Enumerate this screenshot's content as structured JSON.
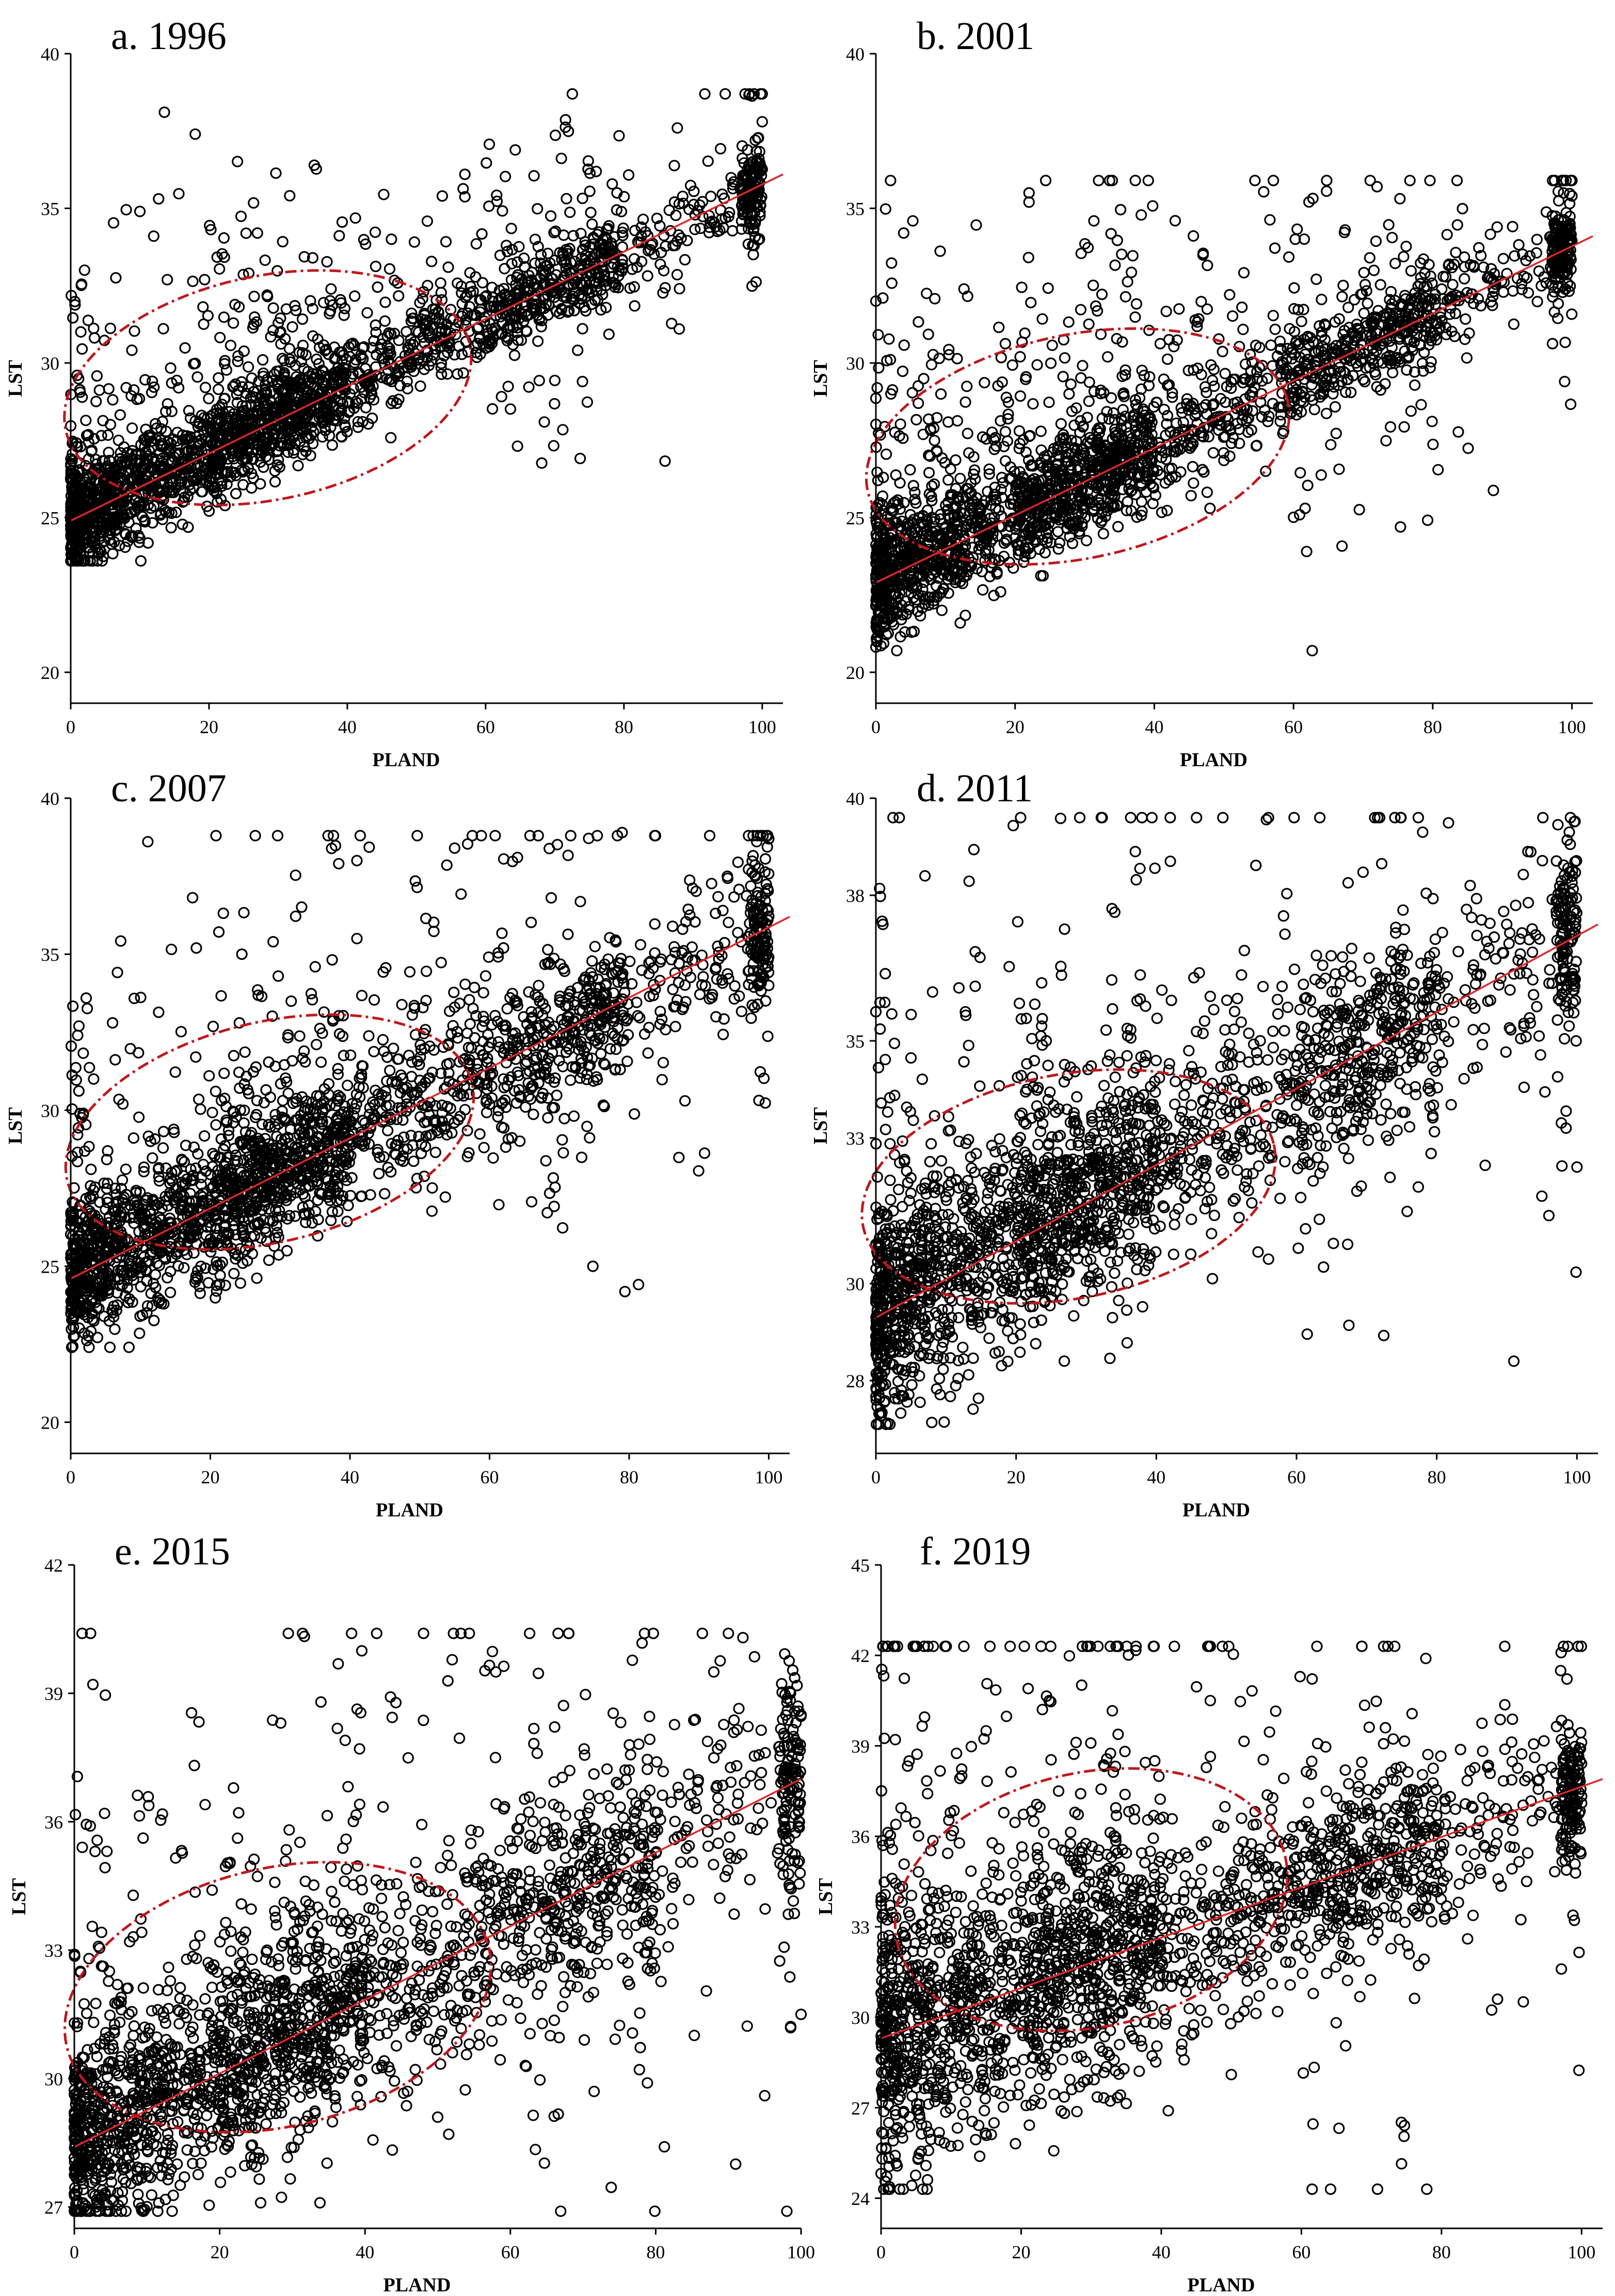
{
  "chart_data": [
    {
      "type": "scatter",
      "title": "a. 1996",
      "xlabel": "PLAND",
      "ylabel": "LST",
      "xlim": [
        0,
        103
      ],
      "ylim": [
        19,
        40
      ],
      "xticks": [
        0,
        20,
        40,
        60,
        80,
        100
      ],
      "yticks": [
        20,
        25,
        30,
        35,
        40
      ],
      "grid": false,
      "legend": "none",
      "point_color": "#000000",
      "trend_color": "#e0262a",
      "ellipse_color": "#c0171c",
      "trend_line": {
        "x": [
          0,
          103
        ],
        "y": [
          24.9,
          36.1
        ]
      },
      "ellipse": {
        "cx": 28.5,
        "cy": 29.2,
        "rx": 30,
        "ry": 3.6,
        "angle_deg": 14
      },
      "point_cloud": {
        "count": 2400,
        "seed": 11,
        "x_range": [
          0,
          100
        ],
        "y_min": 23.6,
        "y_max": 38.7,
        "base": 24.9,
        "slope": 0.109,
        "spread_low": 0.9,
        "spread_high": 0.6,
        "outlier_rate": 0.16,
        "outlier_scale": 4.5
      },
      "points": [
        {
          "x": 18,
          "y": 37.4
        },
        {
          "x": 57,
          "y": 36.1
        },
        {
          "x": 10,
          "y": 34.9
        },
        {
          "x": 12,
          "y": 34.1
        },
        {
          "x": 27,
          "y": 34.2
        },
        {
          "x": 79,
          "y": 35.5
        },
        {
          "x": 88,
          "y": 31.1
        },
        {
          "x": 63,
          "y": 33.8
        },
        {
          "x": 100,
          "y": 38.7
        },
        {
          "x": 100,
          "y": 37.8
        },
        {
          "x": 99,
          "y": 37.2
        },
        {
          "x": 2,
          "y": 33.0
        },
        {
          "x": 35,
          "y": 33.4
        },
        {
          "x": 74,
          "y": 29.4
        },
        {
          "x": 68,
          "y": 33.5
        }
      ]
    },
    {
      "type": "scatter",
      "title": "b. 2001",
      "xlabel": "PLAND",
      "ylabel": "LST",
      "xlim": [
        0,
        103
      ],
      "ylim": [
        19,
        40
      ],
      "xticks": [
        0,
        20,
        40,
        60,
        80,
        100
      ],
      "yticks": [
        20,
        25,
        30,
        35,
        40
      ],
      "grid": false,
      "legend": "none",
      "point_color": "#000000",
      "trend_color": "#e0262a",
      "ellipse_color": "#c0171c",
      "trend_line": {
        "x": [
          0,
          103
        ],
        "y": [
          22.9,
          34.1
        ]
      },
      "ellipse": {
        "cx": 29,
        "cy": 27.3,
        "rx": 31,
        "ry": 3.6,
        "angle_deg": 14
      },
      "point_cloud": {
        "count": 2400,
        "seed": 23,
        "x_range": [
          0,
          100
        ],
        "y_min": 20.7,
        "y_max": 35.9,
        "base": 22.9,
        "slope": 0.109,
        "spread_low": 1.0,
        "spread_high": 0.7,
        "outlier_rate": 0.16,
        "outlier_scale": 4.5
      },
      "points": [
        {
          "x": 32,
          "y": 35.9
        },
        {
          "x": 22,
          "y": 35.5
        },
        {
          "x": 22,
          "y": 35.2
        },
        {
          "x": 4,
          "y": 34.2
        },
        {
          "x": 43,
          "y": 34.6
        },
        {
          "x": 72,
          "y": 35.7
        },
        {
          "x": 0,
          "y": 32.0
        },
        {
          "x": 1,
          "y": 32.1
        },
        {
          "x": 3,
          "y": 20.7
        },
        {
          "x": 100,
          "y": 35.9
        },
        {
          "x": 100,
          "y": 35.4
        },
        {
          "x": 56,
          "y": 26.5
        },
        {
          "x": 48,
          "y": 25.3
        }
      ]
    },
    {
      "type": "scatter",
      "title": "c. 2007",
      "xlabel": "PLAND",
      "ylabel": "LST",
      "xlim": [
        0,
        103
      ],
      "ylim": [
        19,
        40
      ],
      "xticks": [
        0,
        20,
        40,
        60,
        80,
        100
      ],
      "yticks": [
        20,
        25,
        30,
        35,
        40
      ],
      "grid": false,
      "legend": "none",
      "point_color": "#000000",
      "trend_color": "#e0262a",
      "ellipse_color": "#c0171c",
      "trend_line": {
        "x": [
          0,
          103
        ],
        "y": [
          24.6,
          36.2
        ]
      },
      "ellipse": {
        "cx": 28.5,
        "cy": 29.3,
        "rx": 30,
        "ry": 3.5,
        "angle_deg": 16
      },
      "point_cloud": {
        "count": 2400,
        "seed": 37,
        "x_range": [
          0,
          100
        ],
        "y_min": 22.4,
        "y_max": 38.8,
        "base": 24.6,
        "slope": 0.113,
        "spread_low": 1.2,
        "spread_high": 1.2,
        "outlier_rate": 0.14,
        "outlier_scale": 4.0
      },
      "points": [
        {
          "x": 41,
          "y": 38.0
        },
        {
          "x": 55,
          "y": 38.4
        },
        {
          "x": 64,
          "y": 38.1
        },
        {
          "x": 79,
          "y": 38.9
        },
        {
          "x": 100,
          "y": 38.7
        },
        {
          "x": 18,
          "y": 35.2
        },
        {
          "x": 29,
          "y": 35.4
        },
        {
          "x": 41,
          "y": 35.5
        },
        {
          "x": 1,
          "y": 32.4
        },
        {
          "x": 6,
          "y": 32.8
        },
        {
          "x": 88,
          "y": 30.3
        },
        {
          "x": 100,
          "y": 34.0
        }
      ]
    },
    {
      "type": "scatter",
      "title": "d. 2011",
      "xlabel": "PLAND",
      "ylabel": "LST",
      "xlim": [
        0,
        103
      ],
      "ylim": [
        26.5,
        40
      ],
      "xticks": [
        0,
        20,
        40,
        60,
        80,
        100
      ],
      "yticks": [
        28,
        30,
        33,
        35,
        38,
        40
      ],
      "grid": false,
      "legend": "none",
      "point_color": "#000000",
      "trend_color": "#e0262a",
      "ellipse_color": "#c0171c",
      "trend_line": {
        "x": [
          0,
          103
        ],
        "y": [
          29.3,
          37.4
        ]
      },
      "ellipse": {
        "cx": 27.5,
        "cy": 32.0,
        "rx": 30,
        "ry": 2.3,
        "angle_deg": 13
      },
      "point_cloud": {
        "count": 2400,
        "seed": 41,
        "x_range": [
          0,
          100
        ],
        "y_min": 27.1,
        "y_max": 39.6,
        "base": 29.3,
        "slope": 0.079,
        "spread_low": 1.1,
        "spread_high": 1.0,
        "outlier_rate": 0.14,
        "outlier_scale": 3.4
      },
      "points": [
        {
          "x": 56,
          "y": 39.6
        },
        {
          "x": 78,
          "y": 39.3
        },
        {
          "x": 37,
          "y": 38.9
        },
        {
          "x": 42,
          "y": 38.7
        },
        {
          "x": 93,
          "y": 38.9
        },
        {
          "x": 1,
          "y": 37.4
        },
        {
          "x": 7,
          "y": 38.4
        },
        {
          "x": 91,
          "y": 28.4
        },
        {
          "x": 96,
          "y": 31.4
        },
        {
          "x": 95,
          "y": 31.8
        },
        {
          "x": 48,
          "y": 30.1
        },
        {
          "x": 100,
          "y": 32.4
        },
        {
          "x": 2,
          "y": 27.1
        }
      ]
    },
    {
      "type": "scatter",
      "title": "e. 2015",
      "xlabel": "PLAND",
      "ylabel": "LST",
      "xlim": [
        0,
        100
      ],
      "ylim": [
        26.5,
        42
      ],
      "xticks": [
        0,
        20,
        40,
        60,
        80,
        100
      ],
      "yticks": [
        27,
        30,
        33,
        36,
        39,
        42
      ],
      "grid": false,
      "legend": "none",
      "point_color": "#000000",
      "trend_color": "#e0262a",
      "ellipse_color": "#c0171c",
      "trend_line": {
        "x": [
          0,
          100
        ],
        "y": [
          28.4,
          37.0
        ]
      },
      "ellipse": {
        "cx": 28,
        "cy": 31.9,
        "rx": 30,
        "ry": 3.0,
        "angle_deg": 16
      },
      "point_cloud": {
        "count": 2400,
        "seed": 53,
        "x_range": [
          0,
          100
        ],
        "y_min": 26.9,
        "y_max": 40.4,
        "base": 28.4,
        "slope": 0.086,
        "spread_low": 1.2,
        "spread_high": 1.3,
        "outlier_rate": 0.14,
        "outlier_scale": 3.6
      },
      "points": [
        {
          "x": 90,
          "y": 40.4
        },
        {
          "x": 92,
          "y": 40.3
        },
        {
          "x": 58,
          "y": 39.5
        },
        {
          "x": 88,
          "y": 39.5
        },
        {
          "x": 18,
          "y": 36.4
        },
        {
          "x": 91,
          "y": 28.0
        },
        {
          "x": 95,
          "y": 29.6
        },
        {
          "x": 50,
          "y": 29.1
        },
        {
          "x": 100,
          "y": 38.5
        },
        {
          "x": 100,
          "y": 31.5
        },
        {
          "x": 3,
          "y": 27.0
        }
      ]
    },
    {
      "type": "scatter",
      "title": "f. 2019",
      "xlabel": "PLAND",
      "ylabel": "LST",
      "xlim": [
        0,
        103
      ],
      "ylim": [
        23,
        45
      ],
      "xticks": [
        0,
        20,
        40,
        60,
        80,
        100
      ],
      "yticks": [
        24,
        27,
        30,
        33,
        36,
        39,
        42,
        45
      ],
      "grid": false,
      "legend": "none",
      "point_color": "#000000",
      "trend_color": "#e0262a",
      "ellipse_color": "#c0171c",
      "trend_line": {
        "x": [
          0,
          103
        ],
        "y": [
          29.3,
          37.9
        ]
      },
      "ellipse": {
        "cx": 30,
        "cy": 33.9,
        "rx": 28.5,
        "ry": 4.2,
        "angle_deg": 15
      },
      "point_cloud": {
        "count": 2400,
        "seed": 67,
        "x_range": [
          0,
          100
        ],
        "y_min": 24.3,
        "y_max": 42.3,
        "base": 29.3,
        "slope": 0.083,
        "spread_low": 2.4,
        "spread_high": 1.1,
        "outlier_rate": 0.12,
        "outlier_scale": 4.0
      },
      "points": [
        {
          "x": 47,
          "y": 42.3
        },
        {
          "x": 47,
          "y": 40.5
        },
        {
          "x": 21,
          "y": 40.9
        },
        {
          "x": 24,
          "y": 40.5
        },
        {
          "x": 15,
          "y": 39.5
        },
        {
          "x": 1,
          "y": 24.3
        },
        {
          "x": 4,
          "y": 38.5
        },
        {
          "x": 41,
          "y": 26.9
        },
        {
          "x": 88,
          "y": 30.6
        },
        {
          "x": 72,
          "y": 39.6
        },
        {
          "x": 50,
          "y": 28.1
        }
      ]
    }
  ]
}
